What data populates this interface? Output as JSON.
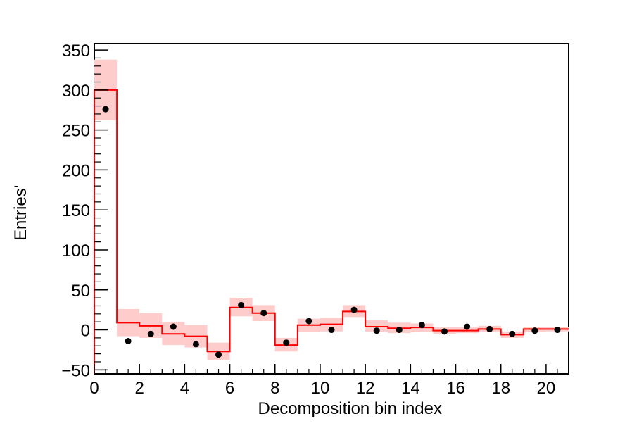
{
  "chart_data": {
    "type": "histogram",
    "xlabel": "Decomposition bin index",
    "ylabel": "Entries'",
    "xlim": [
      0,
      21
    ],
    "ylim": [
      -55,
      358
    ],
    "x_ticks": [
      0,
      2,
      4,
      6,
      8,
      10,
      12,
      14,
      16,
      18,
      20
    ],
    "y_ticks": [
      -50,
      0,
      50,
      100,
      150,
      200,
      250,
      300,
      350
    ],
    "bin_edges": [
      0,
      1,
      2,
      3,
      4,
      5,
      6,
      7,
      8,
      9,
      10,
      11,
      12,
      13,
      14,
      15,
      16,
      17,
      18,
      19,
      20,
      21
    ],
    "series": [
      {
        "type": "step",
        "color": "#ff0000",
        "values": [
          300,
          9,
          5,
          -5,
          -8,
          -27,
          28,
          21,
          -19,
          6,
          7,
          23,
          4,
          2,
          3,
          -1,
          -1,
          1,
          -6,
          1,
          1
        ],
        "band_low": [
          262,
          -8,
          -10,
          -19,
          -22,
          -38,
          17,
          11,
          -27,
          -3,
          -2,
          16,
          -3,
          -4,
          -3,
          -5,
          -4,
          -3,
          -10,
          -3,
          -2
        ],
        "band_high": [
          338,
          26,
          21,
          10,
          6,
          -16,
          40,
          31,
          -10,
          14,
          15,
          31,
          12,
          9,
          8,
          3,
          3,
          5,
          -2,
          4,
          4
        ],
        "band_color": "#ffcccc"
      },
      {
        "type": "points",
        "color": "#000000",
        "x": [
          0.5,
          1.5,
          2.5,
          3.5,
          4.5,
          5.5,
          6.5,
          7.5,
          8.5,
          9.5,
          10.5,
          11.5,
          12.5,
          13.5,
          14.5,
          15.5,
          16.5,
          17.5,
          18.5,
          19.5,
          20.5
        ],
        "values": [
          276,
          -14,
          -5,
          4,
          -18,
          -31,
          31,
          21,
          -16,
          11,
          0,
          25,
          -1,
          0,
          6,
          -2,
          4,
          1,
          -5,
          -1,
          0
        ]
      }
    ]
  }
}
